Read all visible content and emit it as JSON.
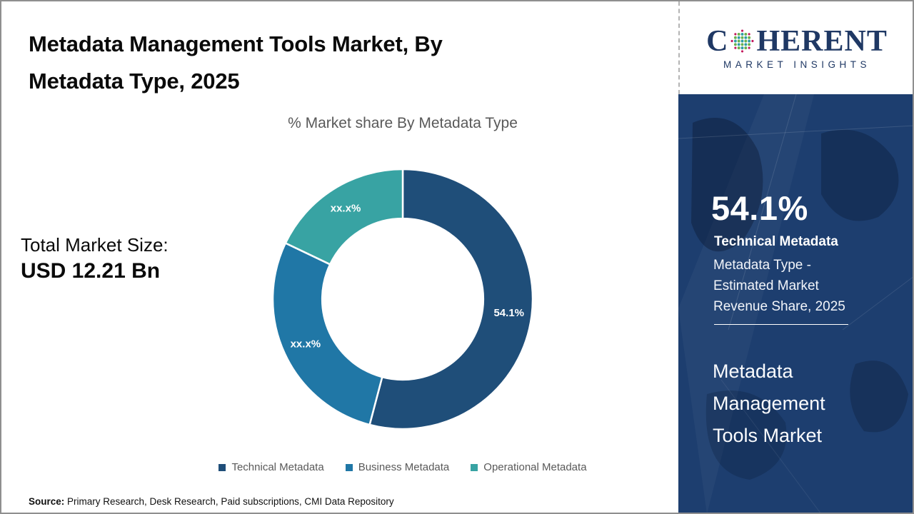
{
  "header": {
    "title_lines": [
      "Metadata Management Tools Market, By",
      "Metadata Type, 2025"
    ]
  },
  "logo": {
    "brand_first_letter": "C",
    "brand_rest": "HERENT",
    "tagline": "MARKET INSIGHTS",
    "brand_color": "#1f3864"
  },
  "total_market": {
    "label": "Total Market Size:",
    "value": "USD 12.21 Bn"
  },
  "chart_data": {
    "type": "pie",
    "subtype": "donut",
    "title": "% Market share By Metadata Type",
    "categories": [
      "Technical Metadata",
      "Business Metadata",
      "Operational Metadata"
    ],
    "values": [
      54.1,
      28.0,
      17.9
    ],
    "slice_labels": [
      "54.1%",
      "xx.x%",
      "xx.x%"
    ],
    "colors": [
      "#1F4E79",
      "#2077A6",
      "#38A3A3"
    ],
    "start_angle_deg": 0,
    "direction": "clockwise",
    "inner_radius_ratio": 0.62,
    "legend_position": "bottom"
  },
  "sidebar": {
    "stat_value": "54.1%",
    "stat_label": "Technical Metadata",
    "stat_desc_lines": [
      "Metadata Type -",
      "Estimated Market",
      "Revenue Share, 2025"
    ],
    "market_name_lines": [
      "Metadata",
      "Management",
      "Tools Market"
    ],
    "panel_color": "#1d3e6f"
  },
  "source": {
    "label": "Source:",
    "text": " Primary Research, Desk Research, Paid subscriptions, CMI Data Repository"
  }
}
